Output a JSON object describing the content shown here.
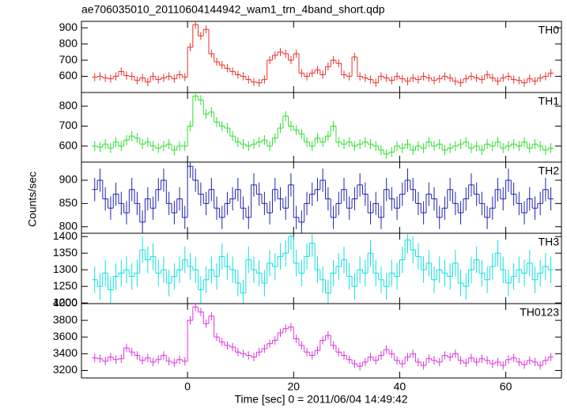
{
  "chart_data": {
    "type": "step",
    "title": "ae706035010_20110604144942_wam1_trn_4band_short.qdp",
    "xlabel": "Time [sec] 0 = 2011/06/04 14:49:42",
    "ylabel": "Counts/sec",
    "xlim": [
      -20,
      70.5
    ],
    "xticks": [
      0,
      20,
      40,
      60
    ],
    "x": [
      -17.5,
      -16.5,
      -15.5,
      -14.5,
      -13.5,
      -12.5,
      -11.5,
      -10.5,
      -9.5,
      -8.5,
      -7.5,
      -6.5,
      -5.5,
      -4.5,
      -3.5,
      -2.5,
      -1.5,
      -0.5,
      0.5,
      1.5,
      2.5,
      3.5,
      4.5,
      5.5,
      6.5,
      7.5,
      8.5,
      9.5,
      10.5,
      11.5,
      12.5,
      13.5,
      14.5,
      15.5,
      16.5,
      17.5,
      18.5,
      19.5,
      20.5,
      21.5,
      22.5,
      23.5,
      24.5,
      25.5,
      26.5,
      27.5,
      28.5,
      29.5,
      30.5,
      31.5,
      32.5,
      33.5,
      34.5,
      35.5,
      36.5,
      37.5,
      38.5,
      39.5,
      40.5,
      41.5,
      42.5,
      43.5,
      44.5,
      45.5,
      46.5,
      47.5,
      48.5,
      49.5,
      50.5,
      51.5,
      52.5,
      53.5,
      54.5,
      55.5,
      56.5,
      57.5,
      58.5,
      59.5,
      60.5,
      61.5,
      62.5,
      63.5,
      64.5,
      65.5,
      66.5,
      67.5,
      68.5
    ],
    "series": [
      {
        "name": "TH0",
        "color": "#e8302a",
        "error": 25,
        "ylim": [
          500,
          940
        ],
        "yticks": [
          600,
          700,
          800,
          900
        ],
        "values": [
          595,
          600,
          590,
          585,
          600,
          630,
          605,
          600,
          575,
          590,
          565,
          600,
          580,
          590,
          600,
          585,
          610,
          595,
          780,
          920,
          850,
          890,
          740,
          690,
          670,
          650,
          630,
          610,
          600,
          580,
          565,
          560,
          580,
          700,
          730,
          750,
          740,
          700,
          740,
          620,
          600,
          620,
          640,
          610,
          660,
          700,
          680,
          610,
          600,
          720,
          600,
          590,
          580,
          560,
          600,
          590,
          575,
          600,
          585,
          570,
          590,
          580,
          600,
          590,
          575,
          585,
          600,
          590,
          570,
          560,
          585,
          600,
          590,
          580,
          610,
          590,
          570,
          590,
          600,
          580,
          575,
          560,
          585,
          570,
          590,
          600,
          620
        ]
      },
      {
        "name": "TH1",
        "color": "#30dd30",
        "error": 25,
        "ylim": [
          520,
          868
        ],
        "yticks": [
          600,
          700,
          800
        ],
        "values": [
          600,
          595,
          610,
          590,
          620,
          600,
          630,
          650,
          640,
          610,
          620,
          600,
          590,
          600,
          610,
          580,
          600,
          600,
          700,
          850,
          830,
          760,
          770,
          720,
          700,
          690,
          650,
          620,
          610,
          600,
          610,
          620,
          630,
          600,
          640,
          690,
          750,
          700,
          680,
          660,
          620,
          600,
          640,
          620,
          650,
          700,
          620,
          610,
          620,
          600,
          610,
          620,
          610,
          600,
          580,
          560,
          570,
          600,
          590,
          610,
          580,
          600,
          590,
          620,
          600,
          610,
          580,
          590,
          600,
          610,
          620,
          590,
          600,
          580,
          610,
          600,
          620,
          590,
          600,
          610,
          600,
          620,
          590,
          610,
          600,
          580,
          590
        ]
      },
      {
        "name": "TH2",
        "color": "#2222b0",
        "error": 25,
        "ylim": [
          786,
          939
        ],
        "yticks": [
          800,
          850,
          900
        ],
        "values": [
          880,
          900,
          860,
          840,
          870,
          850,
          830,
          880,
          850,
          810,
          860,
          840,
          880,
          900,
          850,
          830,
          860,
          820,
          930,
          900,
          870,
          850,
          880,
          840,
          820,
          850,
          860,
          880,
          840,
          820,
          890,
          870,
          850,
          830,
          880,
          860,
          840,
          890,
          820,
          810,
          850,
          870,
          880,
          900,
          860,
          820,
          850,
          880,
          840,
          860,
          890,
          870,
          830,
          850,
          820,
          880,
          860,
          840,
          870,
          900,
          880,
          850,
          830,
          870,
          860,
          820,
          840,
          880,
          850,
          830,
          860,
          890,
          870,
          850,
          820,
          840,
          880,
          860,
          900,
          870,
          850,
          830,
          860,
          840,
          850,
          880,
          860
        ]
      },
      {
        "name": "TH3",
        "color": "#10e0e0",
        "error": 40,
        "ylim": [
          1198,
          1410
        ],
        "yticks": [
          1200,
          1250,
          1300,
          1350,
          1400
        ],
        "values": [
          1270,
          1250,
          1290,
          1240,
          1280,
          1290,
          1300,
          1280,
          1290,
          1360,
          1330,
          1340,
          1290,
          1300,
          1260,
          1280,
          1300,
          1330,
          1310,
          1300,
          1240,
          1270,
          1300,
          1280,
          1340,
          1310,
          1300,
          1260,
          1230,
          1330,
          1300,
          1290,
          1260,
          1320,
          1310,
          1340,
          1350,
          1400,
          1320,
          1290,
          1340,
          1380,
          1300,
          1270,
          1230,
          1290,
          1310,
          1330,
          1280,
          1250,
          1300,
          1290,
          1350,
          1290,
          1270,
          1250,
          1290,
          1280,
          1330,
          1390,
          1360,
          1340,
          1300,
          1320,
          1270,
          1300,
          1290,
          1280,
          1320,
          1260,
          1250,
          1300,
          1330,
          1290,
          1270,
          1310,
          1350,
          1300,
          1260,
          1280,
          1300,
          1290,
          1320,
          1270,
          1290,
          1310,
          1300
        ]
      },
      {
        "name": "TH0123",
        "color": "#dd33dd",
        "error": 50,
        "ylim": [
          3110,
          4000
        ],
        "yticks": [
          3200,
          3400,
          3600,
          3800,
          4000
        ],
        "values": [
          3350,
          3340,
          3310,
          3360,
          3330,
          3340,
          3470,
          3420,
          3380,
          3320,
          3350,
          3300,
          3330,
          3380,
          3310,
          3290,
          3330,
          3310,
          3800,
          3960,
          3900,
          3760,
          3850,
          3600,
          3540,
          3500,
          3480,
          3420,
          3400,
          3380,
          3360,
          3420,
          3460,
          3520,
          3560,
          3650,
          3700,
          3720,
          3580,
          3500,
          3420,
          3380,
          3440,
          3560,
          3620,
          3500,
          3420,
          3380,
          3330,
          3280,
          3250,
          3300,
          3360,
          3320,
          3380,
          3450,
          3400,
          3320,
          3280,
          3360,
          3400,
          3300,
          3260,
          3340,
          3320,
          3300,
          3380,
          3360,
          3400,
          3320,
          3290,
          3350,
          3300,
          3340,
          3320,
          3280,
          3300,
          3260,
          3330,
          3350,
          3300,
          3270,
          3320,
          3300,
          3260,
          3320,
          3360
        ]
      }
    ]
  }
}
